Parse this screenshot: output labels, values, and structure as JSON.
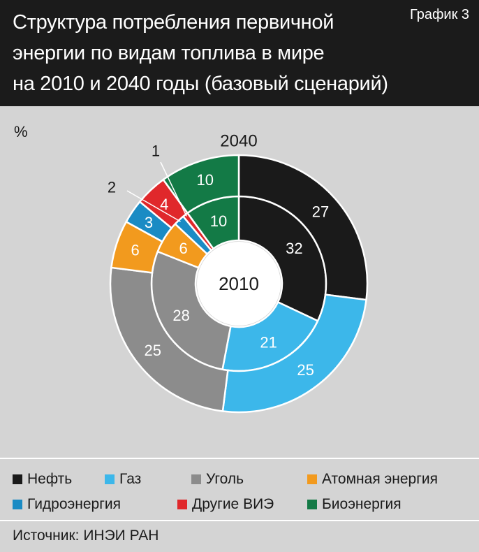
{
  "header": {
    "title_line1": "Структура потребления первичной",
    "title_line2": "энергии по видам топлива в мире",
    "title_line3": "на 2010 и 2040 годы (базовый сценарий)",
    "chart_number": "График 3"
  },
  "chart_data": {
    "type": "pie",
    "variant": "nested-donut",
    "unit_label": "%",
    "categories": [
      "Нефть",
      "Газ",
      "Уголь",
      "Атомная энергия",
      "Гидроэнергия",
      "Другие ВИЭ",
      "Биоэнергия"
    ],
    "colors": [
      "#1a1a1a",
      "#3cb7ea",
      "#8c8c8c",
      "#f29a1e",
      "#1a8bc4",
      "#e0282b",
      "#137a46"
    ],
    "series": [
      {
        "name": "2010",
        "values": [
          32,
          21,
          28,
          6,
          2,
          1,
          10
        ]
      },
      {
        "name": "2040",
        "values": [
          27,
          25,
          25,
          6,
          3,
          4,
          10
        ]
      }
    ],
    "center_label": "2010",
    "outer_label": "2040",
    "outer_labels": [
      "27",
      "25",
      "25",
      "6",
      "3",
      "4",
      "10"
    ],
    "inner_labels": [
      "32",
      "21",
      "28",
      "6",
      "",
      "",
      "10"
    ],
    "callouts": [
      {
        "text": "2",
        "points_to": "2010 Гидроэнергия"
      },
      {
        "text": "1",
        "points_to": "2010 Другие ВИЭ"
      }
    ]
  },
  "legend": {
    "items": [
      {
        "label": "Нефть",
        "color": "#1a1a1a"
      },
      {
        "label": "Газ",
        "color": "#3cb7ea"
      },
      {
        "label": "Уголь",
        "color": "#8c8c8c"
      },
      {
        "label": "Атомная энергия",
        "color": "#f29a1e"
      },
      {
        "label": "Гидроэнергия",
        "color": "#1a8bc4"
      },
      {
        "label": "Другие ВИЭ",
        "color": "#e0282b"
      },
      {
        "label": "Биоэнергия",
        "color": "#137a46"
      }
    ]
  },
  "source": "Источник: ИНЭИ РАН"
}
